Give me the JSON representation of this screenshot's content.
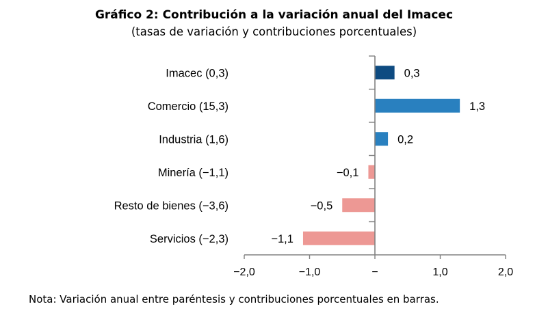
{
  "header": {
    "title": "Gráfico 2: Contribución a la variación anual del Imacec",
    "subtitle": "(tasas de variación y contribuciones porcentuales)"
  },
  "note": "Nota: Variación anual entre paréntesis y contribuciones porcentuales en barras.",
  "chart_data": {
    "type": "bar",
    "orientation": "horizontal",
    "title": "Gráfico 2: Contribución a la variación anual del Imacec",
    "subtitle": "(tasas de variación y contribuciones porcentuales)",
    "categories": [
      "Imacec (0,3)",
      "Comercio (15,3)",
      "Industria (1,6)",
      "Minería (−1,1)",
      "Resto de bienes (−3,6)",
      "Servicios (−2,3)"
    ],
    "values": [
      0.3,
      1.3,
      0.2,
      -0.1,
      -0.5,
      -1.1
    ],
    "value_labels": [
      "0,3",
      "1,3",
      "0,2",
      "−0,1",
      "−0,5",
      "−1,1"
    ],
    "annual_variation_in_parentheses": [
      0.3,
      15.3,
      1.6,
      -1.1,
      -3.6,
      -2.3
    ],
    "bar_colors": [
      "#0e4b81",
      "#2980bf",
      "#2980bf",
      "#ed9894",
      "#ed9894",
      "#ed9894"
    ],
    "colors": {
      "dark_blue": "#0e4b81",
      "medium_blue": "#2980bf",
      "pink": "#ed9894",
      "axis": "#808080",
      "text": "#000000"
    },
    "xlim": [
      -2.0,
      2.0
    ],
    "x_ticks": [
      -2,
      -1,
      0,
      1,
      2
    ],
    "x_tick_labels": [
      "−2,0",
      "−1,0",
      "−",
      "1,0",
      "2,0"
    ],
    "grid": false,
    "legend": false
  }
}
